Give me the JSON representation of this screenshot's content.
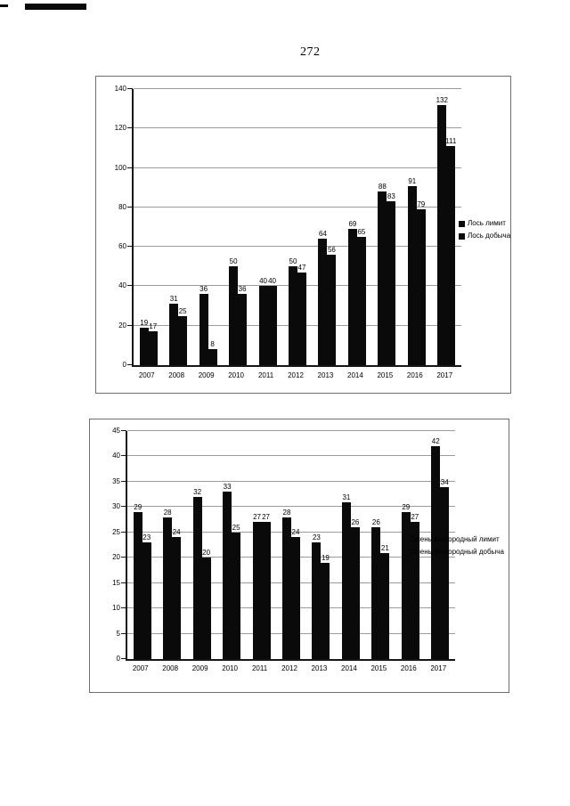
{
  "page": {
    "number": "272"
  },
  "colors": {
    "bar": "#0a0a0a",
    "axis": "#161616",
    "gridline": "#9b9b9b"
  },
  "chart_data": [
    {
      "type": "bar",
      "title": "",
      "xlabel": "",
      "ylabel": "",
      "categories": [
        "2007",
        "2008",
        "2009",
        "2010",
        "2011",
        "2012",
        "2013",
        "2014",
        "2015",
        "2016",
        "2017"
      ],
      "series": [
        {
          "name": "Лось лимит",
          "values": [
            19,
            31,
            36,
            50,
            40,
            50,
            64,
            69,
            88,
            91,
            132
          ]
        },
        {
          "name": "Лось добыча",
          "values": [
            17,
            25,
            8,
            36,
            40,
            47,
            56,
            65,
            83,
            79,
            111
          ]
        }
      ],
      "ylim": [
        0,
        140
      ],
      "ytick": 20,
      "grid": true,
      "legend_position": "right",
      "bar_color": "#0a0a0a",
      "data_labels": true
    },
    {
      "type": "bar",
      "title": "",
      "xlabel": "",
      "ylabel": "",
      "categories": [
        "2007",
        "2008",
        "2009",
        "2010",
        "2011",
        "2012",
        "2013",
        "2014",
        "2015",
        "2016",
        "2017"
      ],
      "series": [
        {
          "name": "Олень благородный лимит",
          "values": [
            29,
            28,
            32,
            33,
            27,
            28,
            23,
            31,
            26,
            29,
            42
          ]
        },
        {
          "name": "Олень благородный добыча",
          "values": [
            23,
            24,
            20,
            25,
            27,
            24,
            19,
            26,
            21,
            27,
            34
          ]
        }
      ],
      "ylim": [
        0,
        45
      ],
      "ytick": 5,
      "grid": true,
      "legend_position": "right",
      "bar_color": "#0a0a0a",
      "data_labels": true
    }
  ]
}
